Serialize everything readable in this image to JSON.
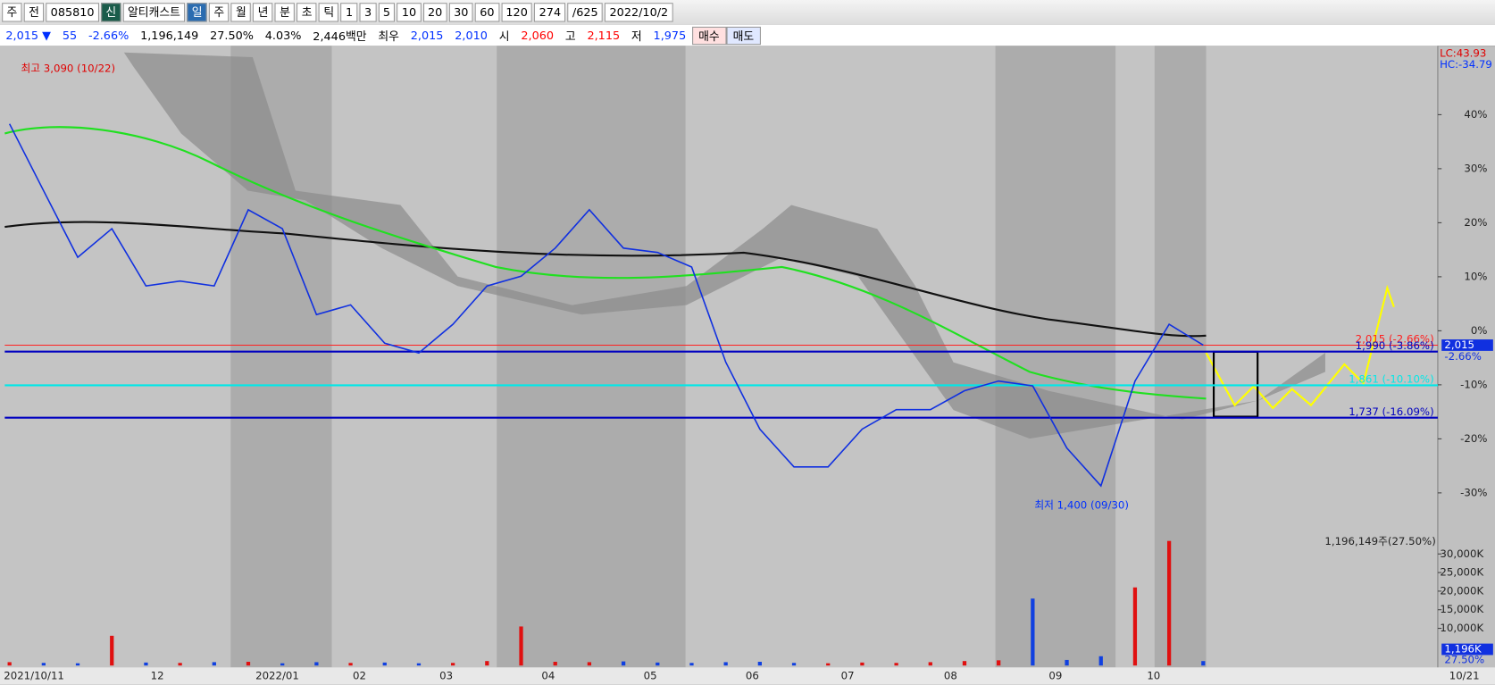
{
  "toolbar": {
    "items": [
      "주",
      "전",
      "085810",
      "신",
      "알티캐스트",
      "일",
      "주",
      "월",
      "년",
      "분",
      "초",
      "틱",
      "1",
      "3",
      "5",
      "10",
      "20",
      "30",
      "60",
      "120",
      "274",
      "/625",
      "2022/10/2"
    ]
  },
  "info_bar": {
    "items": [
      "2,015 ▼",
      "55",
      "-2.66%",
      "1,196,149",
      "27.50%",
      "4.03%",
      "2,446백만",
      "최우",
      "2,015",
      "2,010",
      "시",
      "2,060",
      "고",
      "2,115",
      "저",
      "1,975"
    ],
    "buy": "매수",
    "sell": "매도"
  },
  "chart_data": {
    "type": "line",
    "color": "#1030e0",
    "values": [
      38.3,
      25.9,
      13.6,
      18.9,
      8.3,
      9.2,
      8.3,
      22.4,
      18.9,
      3.0,
      4.8,
      -2.3,
      -4.1,
      1.2,
      8.3,
      10.1,
      15.3,
      22.4,
      15.3,
      14.5,
      11.8,
      -5.8,
      -18.2,
      -25.2,
      -25.2,
      -18.2,
      -14.6,
      -14.6,
      -11.1,
      -9.3,
      -10.2,
      -21.7,
      -28.7,
      -9.3,
      1.2,
      -2.66
    ],
    "ylim": [
      -37.6,
      52.4
    ],
    "yticks": [
      {
        "value": 40,
        "label": "40%"
      },
      {
        "value": 30,
        "label": "30%"
      },
      {
        "value": 20,
        "label": "20%"
      },
      {
        "value": 10,
        "label": "10%"
      },
      {
        "value": 0,
        "label": "0%"
      },
      {
        "value": -10,
        "label": "-10%"
      },
      {
        "value": -20,
        "label": "-20%"
      },
      {
        "value": -30,
        "label": "-30%"
      }
    ],
    "x_labels": [
      "2021/10/11",
      "12",
      "2022/01",
      "02",
      "03",
      "04",
      "05",
      "06",
      "07",
      "08",
      "09",
      "10",
      "10/21"
    ],
    "levels": [
      {
        "value": -2.66,
        "label": "2,015 (-2.66%)",
        "color": "#ff2020"
      },
      {
        "value": -3.86,
        "label": "1,990 (-3.86%)",
        "color": "#0000c0"
      },
      {
        "value": -10.1,
        "label": "1,861 (-10.10%)",
        "color": "#00e8e8"
      },
      {
        "value": -16.09,
        "label": "1,737 (-16.09%)",
        "color": "#0000c0"
      }
    ],
    "lc": "LC:43.93",
    "hc": "HC:-34.79",
    "high": "최고 3,090 (10/22)",
    "low": "최저 1,400 (09/30)",
    "price_tag": "2,015",
    "pct_tag": "-2.66%",
    "volume": {
      "label": "1,196,149주(27.50%)",
      "values": [
        900,
        700,
        600,
        8000,
        800,
        700,
        900,
        1000,
        600,
        900,
        700,
        800,
        600,
        700,
        1200,
        10500,
        1000,
        900,
        1100,
        800,
        700,
        900,
        1000,
        700,
        600,
        800,
        700,
        900,
        1200,
        1400,
        18000,
        1500,
        2500,
        21000,
        33500,
        1196
      ],
      "ylim": [
        0,
        34100
      ],
      "yticks": [
        {
          "value": 30000,
          "label": "30,000K"
        },
        {
          "value": 25000,
          "label": "25,000K"
        },
        {
          "value": 20000,
          "label": "20,000K"
        },
        {
          "value": 15000,
          "label": "15,000K"
        },
        {
          "value": 10000,
          "label": "10,000K"
        }
      ],
      "tag": "1,196K",
      "pct_tag": "27.50%"
    }
  }
}
